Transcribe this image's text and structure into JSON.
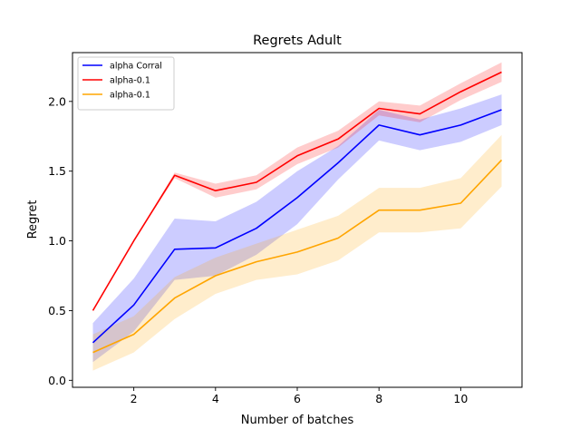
{
  "chart_data": {
    "type": "line",
    "title": "Regrets Adult",
    "xlabel": "Number of batches",
    "ylabel": "Regret",
    "xlim": [
      0.5,
      11.5
    ],
    "ylim": [
      -0.05,
      2.35
    ],
    "xticks": [
      2,
      4,
      6,
      8,
      10
    ],
    "yticks": [
      0.0,
      0.5,
      1.0,
      1.5,
      2.0
    ],
    "xtick_labels": [
      "2",
      "4",
      "6",
      "8",
      "10"
    ],
    "ytick_labels": [
      "0.0",
      "0.5",
      "1.0",
      "1.5",
      "2.0"
    ],
    "grid": false,
    "legend_position": "top-left",
    "x": [
      1,
      2,
      3,
      4,
      5,
      6,
      7,
      8,
      9,
      10,
      11
    ],
    "series": [
      {
        "name": "alpha Corral",
        "color": "#0000ff",
        "values": [
          0.27,
          0.54,
          0.94,
          0.95,
          1.09,
          1.31,
          1.56,
          1.83,
          1.76,
          1.83,
          1.94
        ],
        "lower": [
          0.13,
          0.35,
          0.72,
          0.75,
          0.9,
          1.12,
          1.44,
          1.72,
          1.65,
          1.71,
          1.83
        ],
        "upper": [
          0.41,
          0.73,
          1.16,
          1.14,
          1.28,
          1.5,
          1.68,
          1.94,
          1.87,
          1.95,
          2.05
        ]
      },
      {
        "name": "alpha-0.1",
        "color": "#ff0000",
        "values": [
          0.5,
          1.0,
          1.47,
          1.36,
          1.42,
          1.61,
          1.73,
          1.95,
          1.91,
          2.07,
          2.21
        ],
        "lower": [
          0.5,
          1.0,
          1.45,
          1.31,
          1.37,
          1.55,
          1.67,
          1.9,
          1.85,
          2.01,
          2.14
        ],
        "upper": [
          0.5,
          1.0,
          1.49,
          1.41,
          1.47,
          1.67,
          1.79,
          2.0,
          1.97,
          2.13,
          2.28
        ]
      },
      {
        "name": "alpha-0.1",
        "color": "#ffa500",
        "values": [
          0.2,
          0.33,
          0.59,
          0.75,
          0.85,
          0.92,
          1.02,
          1.22,
          1.22,
          1.27,
          1.58
        ],
        "lower": [
          0.07,
          0.2,
          0.44,
          0.62,
          0.72,
          0.76,
          0.86,
          1.06,
          1.06,
          1.09,
          1.39
        ],
        "upper": [
          0.33,
          0.46,
          0.74,
          0.88,
          0.98,
          1.08,
          1.18,
          1.38,
          1.38,
          1.45,
          1.76
        ]
      }
    ]
  }
}
